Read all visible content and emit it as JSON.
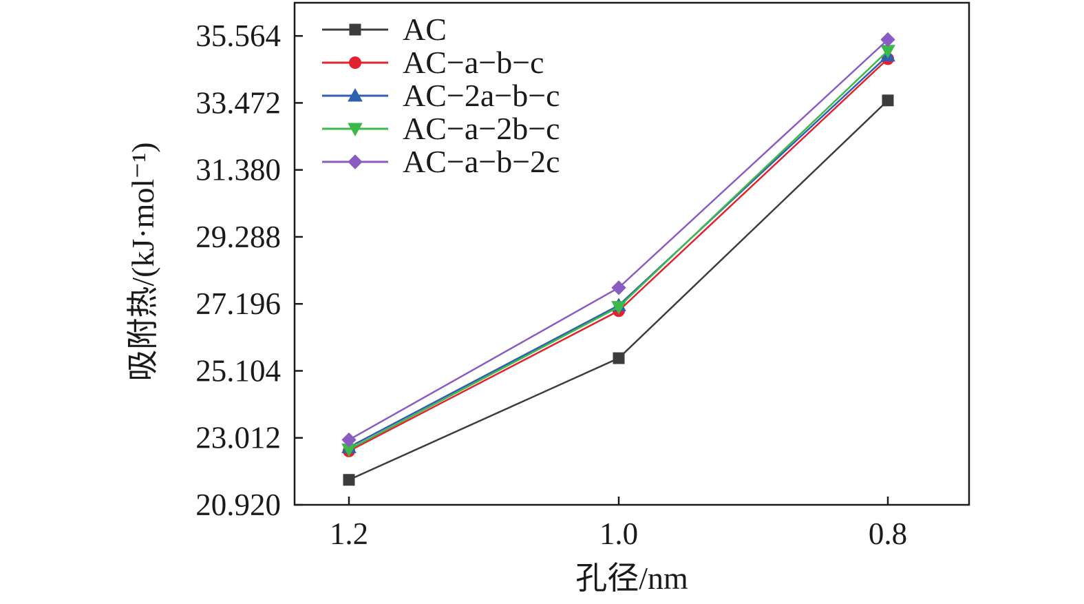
{
  "chart_data": {
    "type": "line",
    "title": "",
    "xlabel": "孔径/nm",
    "ylabel": "吸附热/(kJ·mol⁻¹)",
    "categories": [
      "1.2",
      "1.0",
      "0.8"
    ],
    "yticks": [
      "20.920",
      "23.012",
      "25.104",
      "27.196",
      "29.288",
      "31.380",
      "33.472",
      "35.564"
    ],
    "ylim": [
      20.92,
      36.6
    ],
    "grid": false,
    "legend_position": "top-left",
    "series": [
      {
        "name": "AC",
        "color": "#3c3c3c",
        "marker": "square",
        "values": [
          21.7,
          25.5,
          33.55
        ]
      },
      {
        "name": "AC−a−b−c",
        "color": "#e2222f",
        "marker": "circle",
        "values": [
          22.6,
          26.98,
          34.85
        ]
      },
      {
        "name": "AC−2a−b−c",
        "color": "#2f5fb0",
        "marker": "triangle-up",
        "values": [
          22.72,
          27.15,
          34.95
        ]
      },
      {
        "name": "AC−a−2b−c",
        "color": "#3db84a",
        "marker": "triangle-down",
        "values": [
          22.65,
          27.1,
          35.1
        ]
      },
      {
        "name": "AC−a−b−2c",
        "color": "#8a5cc2",
        "marker": "diamond",
        "values": [
          22.95,
          27.7,
          35.45
        ]
      }
    ]
  }
}
